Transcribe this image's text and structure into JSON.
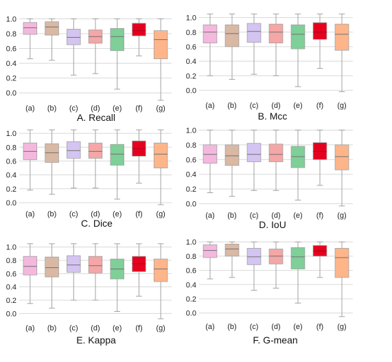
{
  "colors": {
    "a": "#f4b8de",
    "b": "#d9b8a4",
    "c": "#d4c4f2",
    "d": "#f5a6a6",
    "e": "#7fcf98",
    "f": "#e4001e",
    "g": "#ffb58a",
    "whisker": "#a0a0a0",
    "grid": "#d8d8d8",
    "median": "#707070"
  },
  "chart_data": [
    {
      "type": "box",
      "title": "A. Recall",
      "categories": [
        "(a)",
        "(b)",
        "(c)",
        "(d)",
        "(e)",
        "(f)",
        "(g)"
      ],
      "ylim": [
        -0.1,
        1.05
      ],
      "yticks": [
        "0.0",
        "0.2",
        "0.4",
        "0.6",
        "0.8",
        "1.0"
      ],
      "grid": true,
      "boxes": [
        {
          "min": 0.46,
          "q1": 0.79,
          "median": 0.88,
          "q3": 0.95,
          "max": 1.0
        },
        {
          "min": 0.44,
          "q1": 0.78,
          "median": 0.89,
          "q3": 0.96,
          "max": 1.0
        },
        {
          "min": 0.24,
          "q1": 0.65,
          "median": 0.75,
          "q3": 0.86,
          "max": 1.0
        },
        {
          "min": 0.26,
          "q1": 0.67,
          "median": 0.76,
          "q3": 0.85,
          "max": 1.0
        },
        {
          "min": 0.05,
          "q1": 0.57,
          "median": 0.76,
          "q3": 0.87,
          "max": 1.0
        },
        {
          "min": 0.5,
          "q1": 0.77,
          "median": 0.84,
          "q3": 0.94,
          "max": 1.0
        },
        {
          "min": -0.1,
          "q1": 0.46,
          "median": 0.72,
          "q3": 0.84,
          "max": 1.0
        }
      ]
    },
    {
      "type": "box",
      "title": "B. Mcc",
      "categories": [
        "(a)",
        "(b)",
        "(c)",
        "(d)",
        "(e)",
        "(f)",
        "(g)"
      ],
      "ylim": [
        -0.1,
        1.1
      ],
      "yticks": [
        "0.0",
        "0.2",
        "0.4",
        "0.6",
        "0.8",
        "1.0"
      ],
      "grid": true,
      "boxes": [
        {
          "min": 0.2,
          "q1": 0.65,
          "median": 0.8,
          "q3": 0.9,
          "max": 1.05
        },
        {
          "min": 0.15,
          "q1": 0.6,
          "median": 0.78,
          "q3": 0.9,
          "max": 1.05
        },
        {
          "min": 0.22,
          "q1": 0.66,
          "median": 0.81,
          "q3": 0.92,
          "max": 1.05
        },
        {
          "min": 0.2,
          "q1": 0.65,
          "median": 0.8,
          "q3": 0.91,
          "max": 1.05
        },
        {
          "min": 0.05,
          "q1": 0.57,
          "median": 0.77,
          "q3": 0.9,
          "max": 1.05
        },
        {
          "min": 0.3,
          "q1": 0.7,
          "median": 0.8,
          "q3": 0.93,
          "max": 1.05
        },
        {
          "min": -0.02,
          "q1": 0.55,
          "median": 0.77,
          "q3": 0.91,
          "max": 1.05
        }
      ]
    },
    {
      "type": "box",
      "title": "C. Dice",
      "categories": [
        "(a)",
        "(b)",
        "(c)",
        "(d)",
        "(e)",
        "(f)",
        "(g)"
      ],
      "ylim": [
        -0.05,
        1.1
      ],
      "yticks": [
        "0.0",
        "0.2",
        "0.4",
        "0.6",
        "0.8",
        "1.0"
      ],
      "grid": true,
      "boxes": [
        {
          "min": 0.18,
          "q1": 0.62,
          "median": 0.74,
          "q3": 0.86,
          "max": 1.05
        },
        {
          "min": 0.12,
          "q1": 0.58,
          "median": 0.72,
          "q3": 0.85,
          "max": 1.05
        },
        {
          "min": 0.21,
          "q1": 0.64,
          "median": 0.75,
          "q3": 0.88,
          "max": 1.05
        },
        {
          "min": 0.21,
          "q1": 0.64,
          "median": 0.74,
          "q3": 0.86,
          "max": 1.05
        },
        {
          "min": 0.05,
          "q1": 0.54,
          "median": 0.7,
          "q3": 0.84,
          "max": 1.05
        },
        {
          "min": 0.28,
          "q1": 0.67,
          "median": 0.78,
          "q3": 0.89,
          "max": 1.05
        },
        {
          "min": -0.03,
          "q1": 0.5,
          "median": 0.7,
          "q3": 0.86,
          "max": 1.05
        }
      ]
    },
    {
      "type": "box",
      "title": "D. IoU",
      "categories": [
        "(a)",
        "(b)",
        "(c)",
        "(d)",
        "(e)",
        "(f)",
        "(g)"
      ],
      "ylim": [
        -0.05,
        1.05
      ],
      "yticks": [
        "0.0",
        "0.2",
        "0.4",
        "0.6",
        "0.8",
        "1.0"
      ],
      "grid": true,
      "boxes": [
        {
          "min": 0.15,
          "q1": 0.55,
          "median": 0.67,
          "q3": 0.8,
          "max": 1.0
        },
        {
          "min": 0.1,
          "q1": 0.52,
          "median": 0.65,
          "q3": 0.8,
          "max": 1.0
        },
        {
          "min": 0.18,
          "q1": 0.57,
          "median": 0.67,
          "q3": 0.82,
          "max": 1.0
        },
        {
          "min": 0.18,
          "q1": 0.57,
          "median": 0.67,
          "q3": 0.81,
          "max": 1.0
        },
        {
          "min": 0.05,
          "q1": 0.49,
          "median": 0.64,
          "q3": 0.78,
          "max": 1.0
        },
        {
          "min": 0.25,
          "q1": 0.6,
          "median": 0.71,
          "q3": 0.83,
          "max": 1.0
        },
        {
          "min": -0.03,
          "q1": 0.46,
          "median": 0.64,
          "q3": 0.8,
          "max": 1.0
        }
      ]
    },
    {
      "type": "box",
      "title": "E. Kappa",
      "categories": [
        "(a)",
        "(b)",
        "(c)",
        "(d)",
        "(e)",
        "(f)",
        "(g)"
      ],
      "ylim": [
        -0.1,
        1.1
      ],
      "yticks": [
        "0.0",
        "0.2",
        "0.4",
        "0.6",
        "0.8",
        "1.0"
      ],
      "grid": true,
      "boxes": [
        {
          "min": 0.15,
          "q1": 0.58,
          "median": 0.71,
          "q3": 0.86,
          "max": 1.05
        },
        {
          "min": 0.08,
          "q1": 0.55,
          "median": 0.69,
          "q3": 0.85,
          "max": 1.05
        },
        {
          "min": 0.2,
          "q1": 0.62,
          "median": 0.73,
          "q3": 0.87,
          "max": 1.05
        },
        {
          "min": 0.2,
          "q1": 0.61,
          "median": 0.72,
          "q3": 0.86,
          "max": 1.05
        },
        {
          "min": 0.03,
          "q1": 0.52,
          "median": 0.67,
          "q3": 0.82,
          "max": 1.05
        },
        {
          "min": 0.26,
          "q1": 0.63,
          "median": 0.75,
          "q3": 0.86,
          "max": 1.05
        },
        {
          "min": -0.08,
          "q1": 0.48,
          "median": 0.67,
          "q3": 0.82,
          "max": 1.05
        }
      ]
    },
    {
      "type": "box",
      "title": "F. G-mean",
      "categories": [
        "(a)",
        "(b)",
        "(c)",
        "(d)",
        "(e)",
        "(f)",
        "(g)"
      ],
      "ylim": [
        -0.08,
        1.05
      ],
      "yticks": [
        "0.0",
        "0.2",
        "0.4",
        "0.6",
        "0.8",
        "1.0"
      ],
      "grid": true,
      "boxes": [
        {
          "min": 0.48,
          "q1": 0.78,
          "median": 0.88,
          "q3": 0.96,
          "max": 1.0
        },
        {
          "min": 0.5,
          "q1": 0.8,
          "median": 0.9,
          "q3": 0.97,
          "max": 1.0
        },
        {
          "min": 0.32,
          "q1": 0.68,
          "median": 0.79,
          "q3": 0.91,
          "max": 1.0
        },
        {
          "min": 0.35,
          "q1": 0.69,
          "median": 0.8,
          "q3": 0.9,
          "max": 1.0
        },
        {
          "min": 0.14,
          "q1": 0.62,
          "median": 0.79,
          "q3": 0.92,
          "max": 1.0
        },
        {
          "min": 0.5,
          "q1": 0.8,
          "median": 0.87,
          "q3": 0.95,
          "max": 1.0
        },
        {
          "min": -0.05,
          "q1": 0.5,
          "median": 0.78,
          "q3": 0.91,
          "max": 1.0
        }
      ]
    }
  ]
}
